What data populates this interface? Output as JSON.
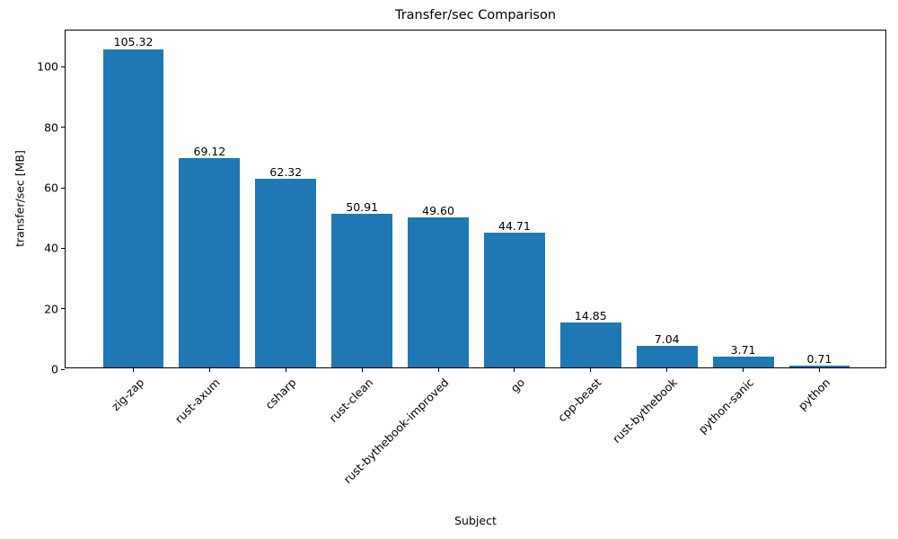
{
  "chart_data": {
    "type": "bar",
    "title": "Transfer/sec Comparison",
    "xlabel": "Subject",
    "ylabel": "transfer/sec [MB]",
    "categories": [
      "zig-zap",
      "rust-axum",
      "csharp",
      "rust-clean",
      "rust-bythebook-improved",
      "go",
      "cpp-beast",
      "rust-bythebook",
      "python-sanic",
      "python"
    ],
    "values": [
      105.32,
      69.12,
      62.32,
      50.91,
      49.6,
      44.71,
      14.85,
      7.04,
      3.71,
      0.71
    ],
    "value_labels": [
      "105.32",
      "69.12",
      "62.32",
      "50.91",
      "49.60",
      "44.71",
      "14.85",
      "7.04",
      "3.71",
      "0.71"
    ],
    "yticks": [
      0,
      20,
      40,
      60,
      80,
      100
    ],
    "ytick_labels": [
      "0",
      "20",
      "40",
      "60",
      "80",
      "100"
    ],
    "ylim": [
      0,
      112
    ],
    "bar_color": "#1f77b4",
    "grid": false,
    "legend": null,
    "xtick_rotation_deg": 45
  }
}
